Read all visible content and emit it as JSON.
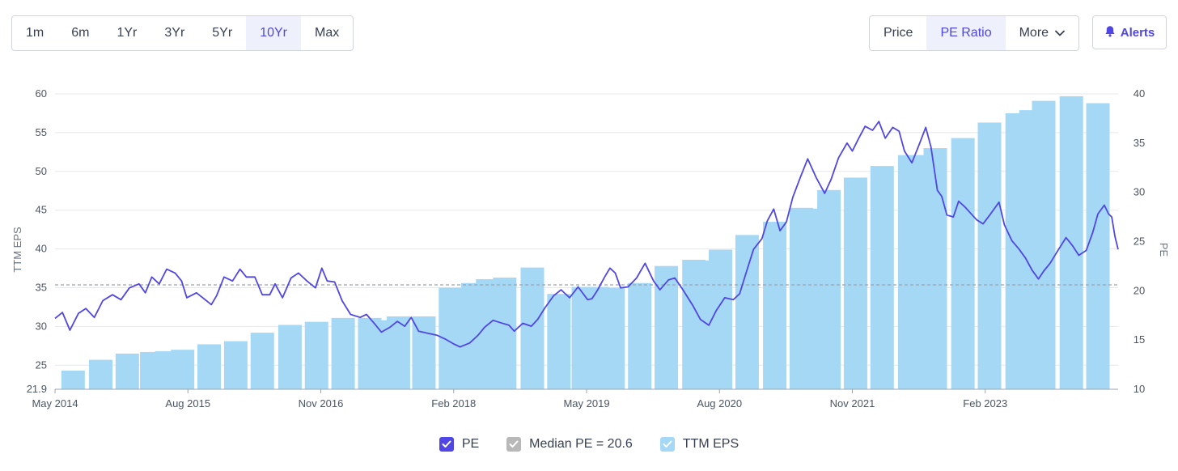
{
  "range_buttons": [
    "1m",
    "6m",
    "1Yr",
    "3Yr",
    "5Yr",
    "10Yr",
    "Max"
  ],
  "active_range": "10Yr",
  "metric_buttons": {
    "price": "Price",
    "pe_ratio": "PE Ratio",
    "more": "More"
  },
  "alerts_label": "Alerts",
  "legend": {
    "pe": "PE",
    "median": "Median PE = 20.6",
    "eps": "TTM EPS"
  },
  "colors": {
    "pe_line": "#4f46e5",
    "eps_bar": "#a5d8f5",
    "median_line": "#9ca3af",
    "accent": "#4f46e5"
  },
  "chart_data": {
    "type": "bar+line",
    "x_ticks": [
      "May 2014",
      "Aug 2015",
      "Nov 2016",
      "Feb 2018",
      "May 2019",
      "Aug 2020",
      "Nov 2021",
      "Feb 2023"
    ],
    "x_range": [
      2014.33,
      2024.33
    ],
    "left_axis": {
      "label": "TTM EPS",
      "ticks": [
        21.9,
        25,
        30,
        35,
        40,
        45,
        50,
        55,
        60
      ],
      "range": [
        21.9,
        60
      ]
    },
    "right_axis": {
      "label": "PE",
      "ticks": [
        10,
        15,
        20,
        25,
        30,
        35,
        40
      ],
      "range": [
        10,
        40
      ]
    },
    "median_pe": 20.6,
    "eps_bars": [
      {
        "x": 2014.5,
        "value": 24.3
      },
      {
        "x": 2014.76,
        "value": 25.7
      },
      {
        "x": 2015.01,
        "value": 26.5
      },
      {
        "x": 2015.24,
        "value": 26.7
      },
      {
        "x": 2015.38,
        "value": 26.8
      },
      {
        "x": 2015.53,
        "value": 27.0
      },
      {
        "x": 2015.78,
        "value": 27.7
      },
      {
        "x": 2016.03,
        "value": 28.1
      },
      {
        "x": 2016.28,
        "value": 29.2
      },
      {
        "x": 2016.54,
        "value": 30.2
      },
      {
        "x": 2016.79,
        "value": 30.6
      },
      {
        "x": 2017.04,
        "value": 31.1
      },
      {
        "x": 2017.29,
        "value": 31.1
      },
      {
        "x": 2017.43,
        "value": 30.8
      },
      {
        "x": 2017.56,
        "value": 31.3
      },
      {
        "x": 2017.8,
        "value": 31.3
      },
      {
        "x": 2018.05,
        "value": 35.0
      },
      {
        "x": 2018.26,
        "value": 35.6
      },
      {
        "x": 2018.4,
        "value": 36.1
      },
      {
        "x": 2018.56,
        "value": 36.3
      },
      {
        "x": 2018.82,
        "value": 37.6
      },
      {
        "x": 2019.07,
        "value": 34.2
      },
      {
        "x": 2019.3,
        "value": 35.1
      },
      {
        "x": 2019.43,
        "value": 35.1
      },
      {
        "x": 2019.58,
        "value": 35.0
      },
      {
        "x": 2019.83,
        "value": 35.6
      },
      {
        "x": 2020.08,
        "value": 37.8
      },
      {
        "x": 2020.34,
        "value": 38.6
      },
      {
        "x": 2020.46,
        "value": 38.5
      },
      {
        "x": 2020.59,
        "value": 39.9
      },
      {
        "x": 2020.84,
        "value": 41.8
      },
      {
        "x": 2021.1,
        "value": 43.5
      },
      {
        "x": 2021.35,
        "value": 45.3
      },
      {
        "x": 2021.49,
        "value": 45.2
      },
      {
        "x": 2021.61,
        "value": 47.6
      },
      {
        "x": 2021.86,
        "value": 49.2
      },
      {
        "x": 2022.11,
        "value": 50.7
      },
      {
        "x": 2022.37,
        "value": 52.1
      },
      {
        "x": 2022.5,
        "value": 52.1
      },
      {
        "x": 2022.61,
        "value": 53.0
      },
      {
        "x": 2022.87,
        "value": 54.3
      },
      {
        "x": 2023.12,
        "value": 56.3
      },
      {
        "x": 2023.38,
        "value": 57.5
      },
      {
        "x": 2023.51,
        "value": 57.9
      },
      {
        "x": 2023.63,
        "value": 59.1
      },
      {
        "x": 2023.89,
        "value": 59.7
      },
      {
        "x": 2024.14,
        "value": 58.8
      }
    ],
    "pe_series": [
      [
        2014.33,
        17.2
      ],
      [
        2014.4,
        17.8
      ],
      [
        2014.47,
        16.0
      ],
      [
        2014.55,
        17.7
      ],
      [
        2014.62,
        18.2
      ],
      [
        2014.7,
        17.3
      ],
      [
        2014.78,
        19.0
      ],
      [
        2014.87,
        19.6
      ],
      [
        2014.95,
        19.1
      ],
      [
        2015.03,
        20.3
      ],
      [
        2015.12,
        20.7
      ],
      [
        2015.18,
        19.8
      ],
      [
        2015.24,
        21.4
      ],
      [
        2015.31,
        20.7
      ],
      [
        2015.38,
        22.2
      ],
      [
        2015.46,
        21.8
      ],
      [
        2015.52,
        21.0
      ],
      [
        2015.57,
        19.3
      ],
      [
        2015.66,
        19.8
      ],
      [
        2015.72,
        19.3
      ],
      [
        2015.8,
        18.6
      ],
      [
        2015.85,
        19.5
      ],
      [
        2015.92,
        21.4
      ],
      [
        2016.0,
        21.0
      ],
      [
        2016.07,
        22.2
      ],
      [
        2016.13,
        21.4
      ],
      [
        2016.21,
        21.4
      ],
      [
        2016.28,
        19.6
      ],
      [
        2016.35,
        19.6
      ],
      [
        2016.4,
        20.7
      ],
      [
        2016.47,
        19.3
      ],
      [
        2016.55,
        21.3
      ],
      [
        2016.62,
        21.8
      ],
      [
        2016.7,
        21.0
      ],
      [
        2016.78,
        20.3
      ],
      [
        2016.84,
        22.3
      ],
      [
        2016.89,
        21.0
      ],
      [
        2016.96,
        20.9
      ],
      [
        2017.03,
        19.0
      ],
      [
        2017.11,
        17.6
      ],
      [
        2017.2,
        17.3
      ],
      [
        2017.26,
        17.6
      ],
      [
        2017.34,
        16.6
      ],
      [
        2017.4,
        15.8
      ],
      [
        2017.48,
        16.3
      ],
      [
        2017.55,
        16.9
      ],
      [
        2017.62,
        16.4
      ],
      [
        2017.68,
        17.3
      ],
      [
        2017.75,
        15.9
      ],
      [
        2017.83,
        15.7
      ],
      [
        2017.92,
        15.5
      ],
      [
        2018.0,
        15.1
      ],
      [
        2018.08,
        14.6
      ],
      [
        2018.14,
        14.3
      ],
      [
        2018.23,
        14.7
      ],
      [
        2018.31,
        15.5
      ],
      [
        2018.37,
        16.3
      ],
      [
        2018.45,
        17.0
      ],
      [
        2018.51,
        16.8
      ],
      [
        2018.6,
        16.5
      ],
      [
        2018.65,
        15.9
      ],
      [
        2018.73,
        16.7
      ],
      [
        2018.81,
        16.4
      ],
      [
        2018.87,
        17.1
      ],
      [
        2018.94,
        18.3
      ],
      [
        2019.02,
        19.5
      ],
      [
        2019.09,
        20.1
      ],
      [
        2019.17,
        19.3
      ],
      [
        2019.25,
        20.4
      ],
      [
        2019.34,
        19.1
      ],
      [
        2019.38,
        19.2
      ],
      [
        2019.43,
        20.0
      ],
      [
        2019.5,
        21.4
      ],
      [
        2019.55,
        22.3
      ],
      [
        2019.6,
        21.8
      ],
      [
        2019.65,
        20.3
      ],
      [
        2019.72,
        20.4
      ],
      [
        2019.8,
        21.3
      ],
      [
        2019.88,
        22.8
      ],
      [
        2019.96,
        21.0
      ],
      [
        2020.02,
        20.1
      ],
      [
        2020.1,
        21.1
      ],
      [
        2020.16,
        21.3
      ],
      [
        2020.23,
        20.2
      ],
      [
        2020.33,
        18.5
      ],
      [
        2020.4,
        17.1
      ],
      [
        2020.48,
        16.5
      ],
      [
        2020.55,
        18.0
      ],
      [
        2020.63,
        19.3
      ],
      [
        2020.71,
        19.1
      ],
      [
        2020.77,
        19.7
      ],
      [
        2020.83,
        21.8
      ],
      [
        2020.9,
        24.2
      ],
      [
        2020.98,
        25.3
      ],
      [
        2021.03,
        27.1
      ],
      [
        2021.09,
        28.3
      ],
      [
        2021.15,
        26.1
      ],
      [
        2021.21,
        27.0
      ],
      [
        2021.27,
        29.5
      ],
      [
        2021.34,
        31.5
      ],
      [
        2021.41,
        33.4
      ],
      [
        2021.49,
        31.5
      ],
      [
        2021.57,
        29.9
      ],
      [
        2021.63,
        31.3
      ],
      [
        2021.7,
        33.5
      ],
      [
        2021.78,
        35.0
      ],
      [
        2021.83,
        34.2
      ],
      [
        2021.89,
        35.5
      ],
      [
        2021.95,
        36.7
      ],
      [
        2022.02,
        36.3
      ],
      [
        2022.08,
        37.2
      ],
      [
        2022.14,
        35.5
      ],
      [
        2022.21,
        36.6
      ],
      [
        2022.27,
        36.2
      ],
      [
        2022.32,
        34.2
      ],
      [
        2022.39,
        33.0
      ],
      [
        2022.46,
        34.9
      ],
      [
        2022.52,
        36.6
      ],
      [
        2022.57,
        34.6
      ],
      [
        2022.63,
        30.2
      ],
      [
        2022.67,
        29.6
      ],
      [
        2022.72,
        27.7
      ],
      [
        2022.78,
        27.5
      ],
      [
        2022.83,
        29.1
      ],
      [
        2022.89,
        28.5
      ],
      [
        2022.94,
        27.9
      ],
      [
        2023.0,
        27.2
      ],
      [
        2023.06,
        26.8
      ],
      [
        2023.13,
        27.8
      ],
      [
        2023.21,
        29.0
      ],
      [
        2023.26,
        26.7
      ],
      [
        2023.33,
        25.1
      ],
      [
        2023.4,
        24.2
      ],
      [
        2023.46,
        23.3
      ],
      [
        2023.52,
        22.1
      ],
      [
        2023.58,
        21.2
      ],
      [
        2023.63,
        22.0
      ],
      [
        2023.69,
        22.8
      ],
      [
        2023.77,
        24.2
      ],
      [
        2023.84,
        25.4
      ],
      [
        2023.9,
        24.6
      ],
      [
        2023.96,
        23.6
      ],
      [
        2024.03,
        24.1
      ],
      [
        2024.09,
        25.9
      ],
      [
        2024.14,
        27.8
      ],
      [
        2024.2,
        28.7
      ],
      [
        2024.24,
        27.8
      ],
      [
        2024.27,
        27.5
      ],
      [
        2024.3,
        25.5
      ],
      [
        2024.33,
        24.2
      ]
    ]
  }
}
